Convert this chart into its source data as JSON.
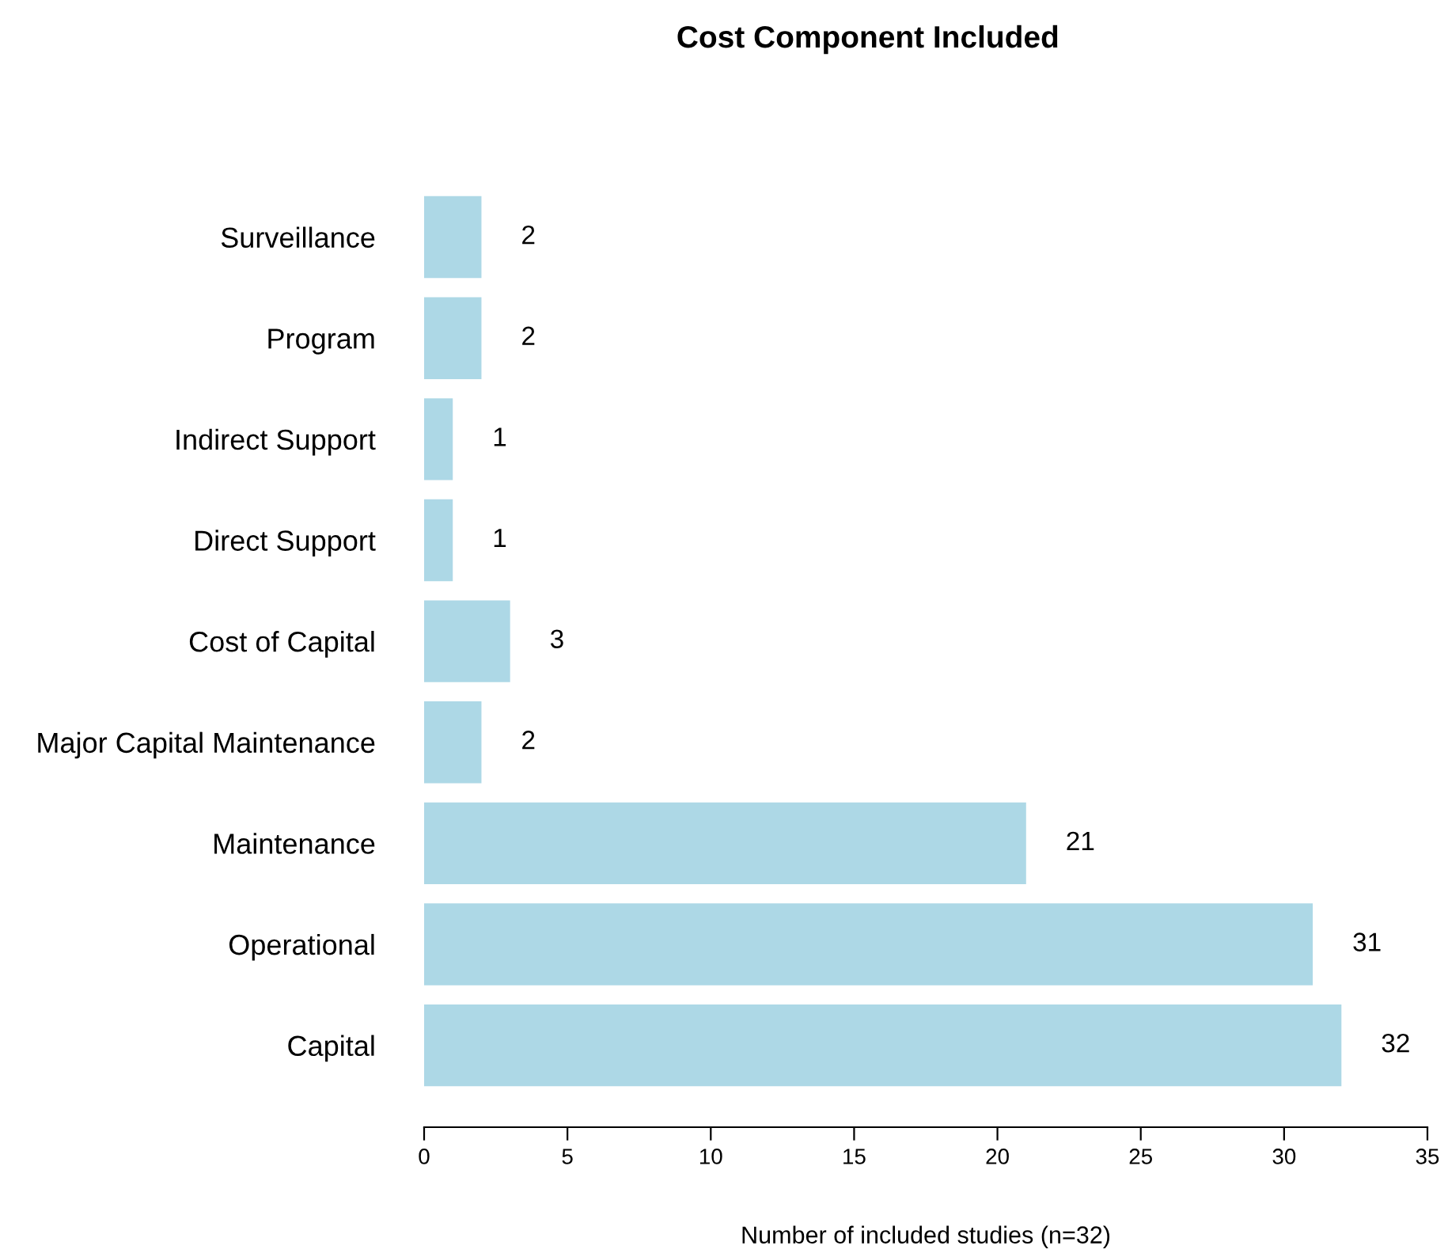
{
  "chart_data": {
    "type": "bar",
    "orientation": "horizontal",
    "title": "Cost Component Included",
    "xlabel": "Number of included studies (n=32)",
    "categories": [
      "Surveillance",
      "Program",
      "Indirect Support",
      "Direct Support",
      "Cost of Capital",
      "Major Capital Maintenance",
      "Maintenance",
      "Operational",
      "Capital"
    ],
    "values": [
      2,
      2,
      1,
      1,
      3,
      2,
      21,
      31,
      32
    ],
    "color": "#add8e6",
    "xlim": [
      0,
      35
    ],
    "xticks": [
      0,
      5,
      10,
      15,
      20,
      25,
      30,
      35
    ],
    "data_labels": true,
    "grid": false,
    "legend": false
  }
}
